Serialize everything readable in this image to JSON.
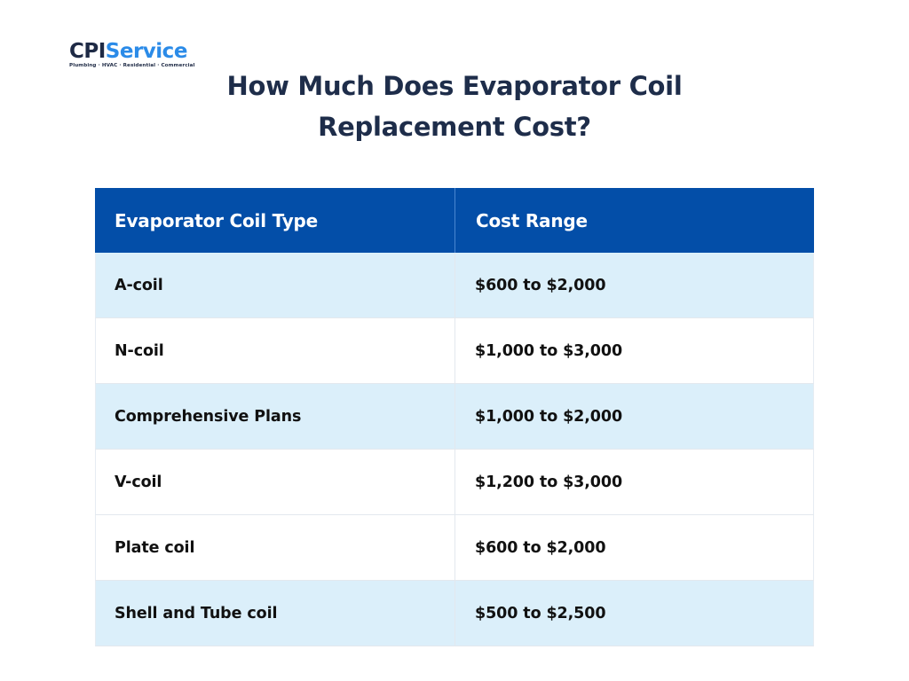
{
  "logo": {
    "brand_part1": "CPI",
    "brand_part2": "Service",
    "tagline": "Plumbing · HVAC · Residential · Commercial",
    "colors": {
      "dark": "#1e2a45",
      "accent": "#2b8be8"
    }
  },
  "title": {
    "line1": "How Much Does Evaporator Coil",
    "line2": "Replacement Cost?"
  },
  "table": {
    "headers": [
      "Evaporator Coil Type",
      "Cost Range"
    ],
    "rows": [
      {
        "type": "A-coil",
        "cost": "$600 to $2,000"
      },
      {
        "type": "N-coil",
        "cost": "$1,000 to $3,000"
      },
      {
        "type": "Comprehensive Plans",
        "cost": "$1,000 to $2,000"
      },
      {
        "type": "V-coil",
        "cost": "$1,200 to $3,000"
      },
      {
        "type": "Plate coil",
        "cost": "$600 to $2,000"
      },
      {
        "type": "Shell and Tube coil",
        "cost": "$500 to $2,500"
      }
    ],
    "colors": {
      "header_bg": "#034ea8",
      "alt_row_bg": "#dbeffa",
      "plain_row_bg": "#ffffff"
    }
  }
}
